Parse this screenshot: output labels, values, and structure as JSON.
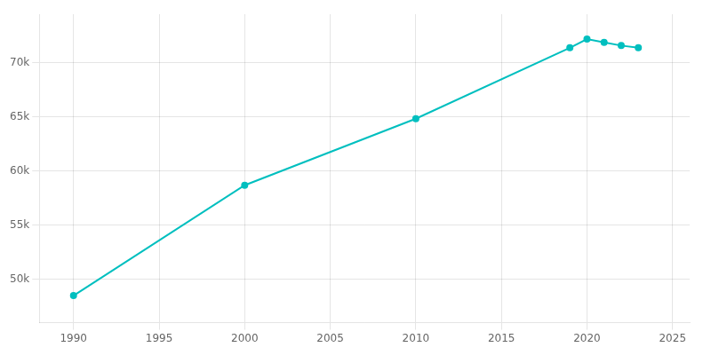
{
  "chart_data": {
    "type": "line",
    "x": [
      1990,
      2000,
      2010,
      2019,
      2020,
      2021,
      2022,
      2023
    ],
    "values": [
      48500,
      58700,
      64849,
      71395,
      72200,
      71900,
      71600,
      71400
    ],
    "color": "#00bfbf",
    "marker": "circle",
    "xlim": [
      1988,
      2026
    ],
    "xticks": [
      1990,
      1995,
      2000,
      2005,
      2010,
      2015,
      2020,
      2025
    ],
    "ylim": [
      46000,
      74500
    ],
    "yticks": [
      {
        "value": 50000,
        "label": "50k"
      },
      {
        "value": 55000,
        "label": "55k"
      },
      {
        "value": 60000,
        "label": "60k"
      },
      {
        "value": 65000,
        "label": "65k"
      },
      {
        "value": 70000,
        "label": "70k"
      }
    ],
    "grid": true
  }
}
